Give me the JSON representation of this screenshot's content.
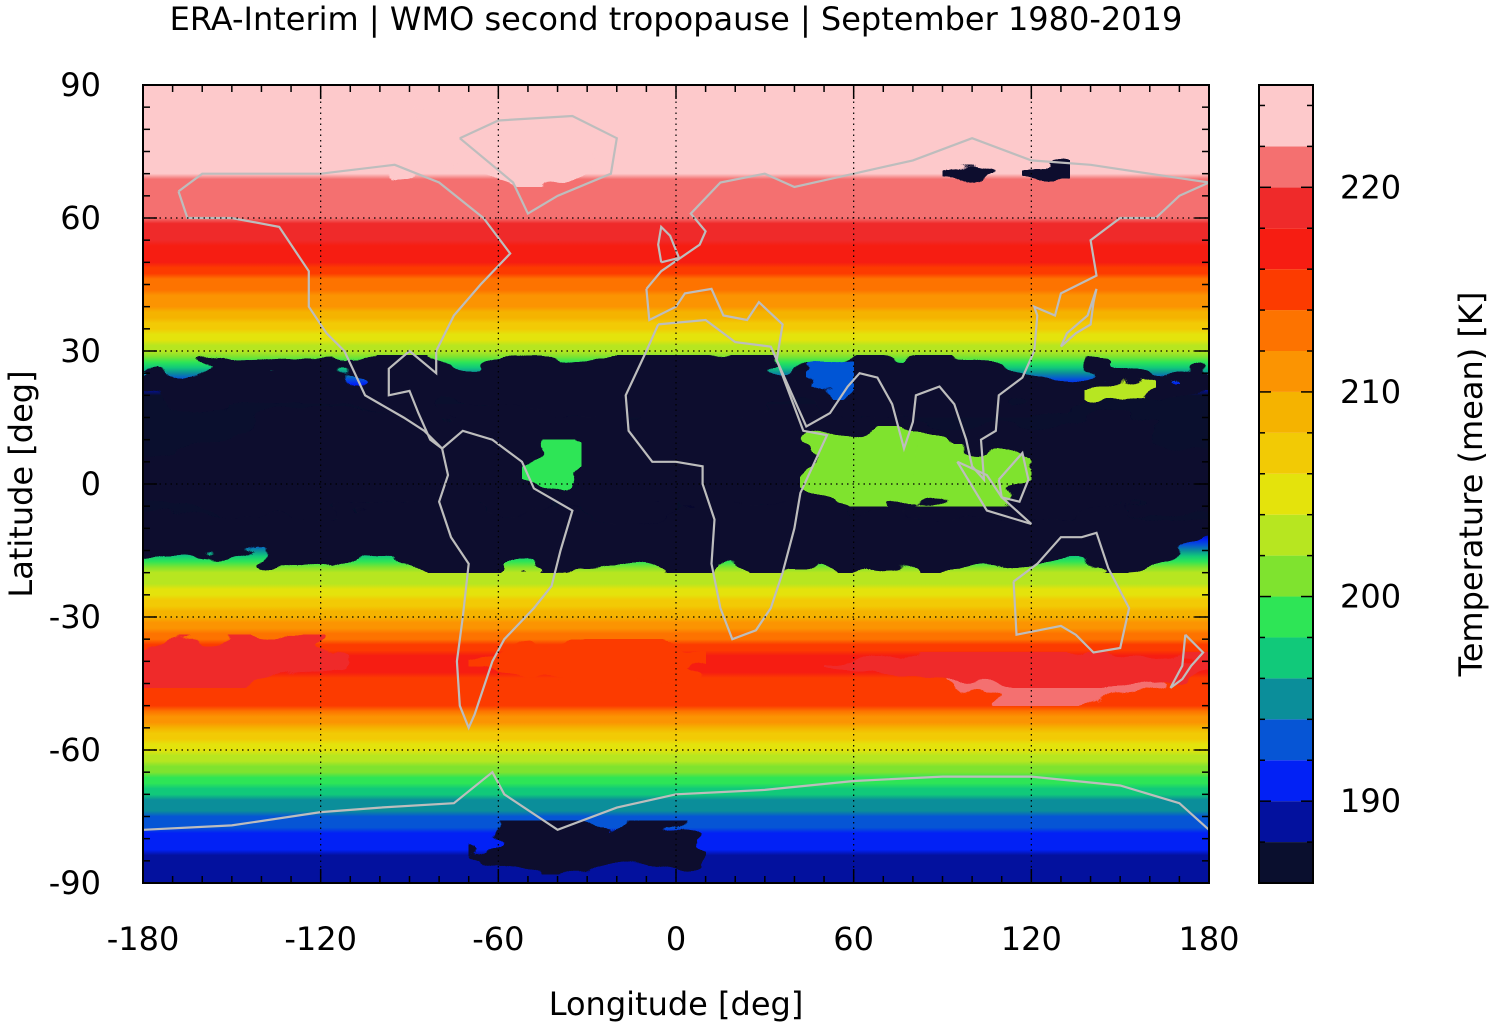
{
  "chart_data": {
    "type": "heatmap",
    "title": "ERA-Interim | WMO second tropopause | September 1980-2019",
    "xlabel": "Longitude [deg]",
    "ylabel": "Latitude [deg]",
    "xlim": [
      -180,
      180
    ],
    "ylim": [
      -90,
      90
    ],
    "x_ticks": [
      "-180",
      "-120",
      "-60",
      "0",
      "60",
      "120",
      "180"
    ],
    "y_ticks": [
      "90",
      "60",
      "30",
      "0",
      "-30",
      "-60",
      "-90"
    ],
    "grid": true,
    "colorbar": {
      "label": "Temperature (mean) [K]",
      "range": [
        186,
        225
      ],
      "ticks": [
        "220",
        "210",
        "200",
        "190"
      ],
      "levels_low_to_high": [
        "#0a0f2e",
        "#03119e",
        "#0221f5",
        "#0655d5",
        "#0b8e9a",
        "#11c97a",
        "#2ee556",
        "#7fe32f",
        "#b7e620",
        "#e4e30c",
        "#f2ca05",
        "#f5b300",
        "#fb9402",
        "#fd7300",
        "#fc3b00",
        "#f61d12",
        "#ef2a2a",
        "#f47070",
        "#fdc9cb"
      ],
      "level_edges": [
        186,
        188,
        190,
        192,
        194,
        196,
        198,
        200,
        202,
        204,
        206,
        208,
        210,
        212,
        214,
        216,
        218,
        220,
        222,
        225
      ]
    },
    "zonal_mean_profile": {
      "lat": [
        -90,
        -80,
        -70,
        -60,
        -50,
        -40,
        -30,
        -20,
        -10,
        0,
        10,
        20,
        30,
        40,
        50,
        60,
        70,
        80,
        90
      ],
      "temperature_K": [
        188,
        191,
        196,
        204,
        214,
        217,
        209,
        202,
        186,
        186,
        186,
        186,
        203,
        210,
        216,
        220,
        222,
        224,
        224
      ]
    },
    "note_colors": {
      "coastlines": "#bdbdbd",
      "undefined_second_tropopause": "#0a0f2e"
    }
  }
}
